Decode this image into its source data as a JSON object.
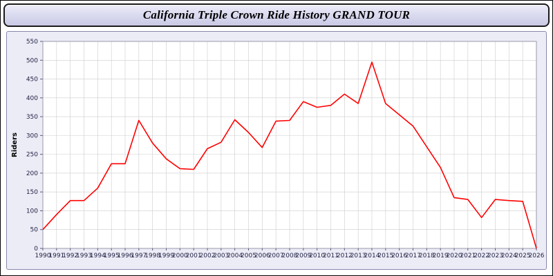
{
  "header": {
    "title": "California Triple Crown Ride History GRAND TOUR"
  },
  "chart_data": {
    "type": "line",
    "title": "California Triple Crown Ride History GRAND TOUR",
    "xlabel": "",
    "ylabel": "Riders",
    "ylim": [
      0,
      550
    ],
    "ytick_step": 50,
    "grid": true,
    "legend": "none",
    "line_color": "#ff0000",
    "plot_bg": "#ffffff",
    "panel_bg": "#ececf7",
    "grid_color": "#cccccc",
    "tick_label_color": "#222244",
    "x": [
      1990,
      1991,
      1992,
      1993,
      1994,
      1995,
      1996,
      1997,
      1998,
      1999,
      2000,
      2001,
      2002,
      2003,
      2004,
      2005,
      2006,
      2007,
      2008,
      2009,
      2010,
      2011,
      2012,
      2013,
      2014,
      2015,
      2016,
      2017,
      2018,
      2019,
      2020,
      2021,
      2022,
      2023,
      2024,
      2025,
      2026
    ],
    "series": [
      {
        "name": "Riders",
        "values": [
          50,
          90,
          127,
          127,
          160,
          225,
          225,
          340,
          280,
          238,
          212,
          210,
          265,
          282,
          342,
          308,
          268,
          338,
          340,
          390,
          375,
          380,
          410,
          385,
          495,
          385,
          355,
          325,
          270,
          215,
          135,
          130,
          82,
          130,
          127,
          125,
          0
        ]
      }
    ]
  }
}
